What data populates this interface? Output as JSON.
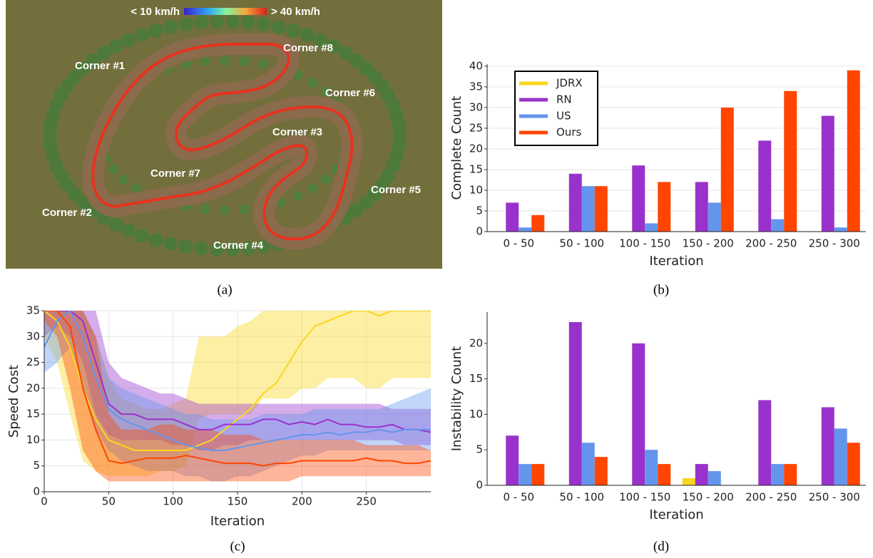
{
  "image_a": {
    "caption": "(a)",
    "speed_low": "< 10 km/h",
    "speed_high": "> 40 km/h",
    "corner_labels": [
      "Corner #1",
      "Corner #8",
      "Corner #6",
      "Corner #3",
      "Corner #7",
      "Corner #5",
      "Corner #2",
      "Corner #4"
    ]
  },
  "chart_data": [
    {
      "type": "bar",
      "caption": "(b)",
      "x_label": "Iteration",
      "y_label": "Complete Count",
      "categories": [
        "0 - 50",
        "50 - 100",
        "100 - 150",
        "150 - 200",
        "200 - 250",
        "250 - 300"
      ],
      "series": [
        {
          "name": "JDRX",
          "color": "#f9d71c",
          "values": [
            0,
            0,
            0,
            0,
            0,
            0
          ]
        },
        {
          "name": "RN",
          "color": "#9932cc",
          "values": [
            7,
            14,
            16,
            12,
            22,
            28
          ]
        },
        {
          "name": "US",
          "color": "#6495ed",
          "values": [
            1,
            11,
            2,
            7,
            3,
            1
          ]
        },
        {
          "name": "Ours",
          "color": "#ff4500",
          "values": [
            4,
            11,
            12,
            30,
            34,
            39
          ]
        }
      ],
      "ylim": [
        0,
        40.5
      ],
      "yticks": [
        0,
        5,
        10,
        15,
        20,
        25,
        30,
        35,
        40
      ],
      "grid": true,
      "legend": "upper left"
    },
    {
      "type": "line",
      "caption": "(c)",
      "x_label": "Iteration",
      "y_label": "Speed Cost",
      "x": [
        0,
        10,
        20,
        30,
        40,
        50,
        60,
        70,
        80,
        90,
        100,
        110,
        120,
        130,
        140,
        150,
        160,
        170,
        180,
        190,
        200,
        210,
        220,
        230,
        240,
        250,
        260,
        270,
        280,
        290,
        300
      ],
      "series": [
        {
          "name": "JDRX",
          "color": "#f9d71c",
          "values": [
            35,
            33,
            28,
            20,
            14,
            10,
            9,
            8,
            8,
            8,
            8,
            8,
            9,
            10,
            12,
            14,
            16,
            19,
            21,
            25,
            29,
            32,
            33,
            34,
            35,
            35,
            34,
            35,
            35,
            35,
            35
          ],
          "lower": [
            30,
            25,
            15,
            6,
            4,
            3,
            3,
            3,
            3,
            4,
            4,
            5,
            14,
            15,
            15,
            15,
            15,
            18,
            18,
            18,
            20,
            20,
            22,
            22,
            22,
            20,
            20,
            22,
            22,
            22,
            22
          ],
          "upper": [
            35,
            35,
            35,
            35,
            30,
            22,
            18,
            17,
            16,
            16,
            17,
            18,
            30,
            30,
            30,
            32,
            33,
            35,
            35,
            35,
            35,
            35,
            35,
            35,
            35,
            35,
            35,
            35,
            35,
            35,
            35
          ]
        },
        {
          "name": "RN",
          "color": "#9932cc",
          "values": [
            35,
            35,
            35,
            33,
            25,
            17,
            15,
            15,
            14,
            14,
            14,
            13,
            12,
            12,
            13,
            13,
            13,
            14,
            14,
            13,
            13.5,
            13,
            14,
            13,
            13,
            12.5,
            12.5,
            13,
            12,
            12,
            11.5
          ],
          "lower": [
            30,
            32,
            30,
            25,
            15,
            11,
            10,
            10,
            10,
            10,
            9,
            9,
            8,
            8,
            9,
            9,
            10,
            10,
            10,
            10,
            10,
            10,
            10,
            10,
            10,
            10,
            10,
            10,
            9,
            9,
            9
          ],
          "upper": [
            35,
            35,
            35,
            35,
            35,
            25,
            22,
            21,
            20,
            19,
            19,
            18,
            17,
            17,
            17,
            17,
            17,
            17,
            17,
            17,
            17,
            17,
            17,
            17,
            17,
            17,
            17,
            16,
            16,
            16,
            16
          ]
        },
        {
          "name": "US",
          "color": "#6495ed",
          "values": [
            28,
            33,
            35,
            30,
            22,
            16,
            14,
            13,
            12,
            11,
            10,
            9,
            8.5,
            8,
            8,
            8.5,
            9,
            9.5,
            10,
            10.5,
            11,
            11,
            11.5,
            11,
            11.5,
            11.5,
            12,
            11.5,
            12,
            12,
            12
          ],
          "lower": [
            23,
            25,
            28,
            20,
            12,
            8,
            6,
            5,
            4,
            4,
            4,
            3,
            3,
            2,
            2,
            3,
            3,
            4,
            5,
            6,
            7,
            7,
            8,
            8,
            8,
            8,
            8,
            8,
            8,
            8,
            8
          ],
          "upper": [
            35,
            35,
            35,
            35,
            30,
            22,
            20,
            19,
            18,
            17,
            16,
            15,
            15,
            14,
            14,
            14,
            14,
            15,
            15,
            15,
            15,
            16,
            16,
            16,
            16,
            16,
            16,
            17,
            18,
            19,
            20
          ]
        },
        {
          "name": "Ours",
          "color": "#ff4500",
          "values": [
            35,
            35,
            32,
            20,
            12,
            6,
            5.5,
            6,
            6.5,
            6.5,
            6.5,
            7,
            6.5,
            6,
            5.5,
            5.5,
            5.5,
            5,
            5.5,
            5.5,
            6,
            6,
            6,
            6,
            6,
            6.5,
            6,
            6,
            5.5,
            5.5,
            6
          ],
          "lower": [
            33,
            30,
            20,
            8,
            4,
            2,
            2,
            2,
            2,
            2,
            2,
            2,
            2,
            2,
            2,
            2,
            2,
            2,
            2,
            2,
            3,
            3,
            3,
            3,
            3,
            3,
            3,
            3,
            3,
            3,
            3
          ],
          "upper": [
            35,
            35,
            35,
            35,
            30,
            15,
            12,
            12,
            12,
            13,
            13,
            12,
            12,
            12,
            11,
            11,
            11,
            10,
            10,
            10,
            10,
            10,
            10,
            10,
            10,
            9,
            9,
            9,
            9,
            9,
            8
          ]
        }
      ],
      "xlim": [
        0,
        300
      ],
      "xticks": [
        0,
        50,
        100,
        150,
        200,
        250
      ],
      "ylim": [
        0,
        35
      ],
      "yticks": [
        0,
        5,
        10,
        15,
        20,
        25,
        30,
        35
      ],
      "grid": true
    },
    {
      "type": "bar",
      "caption": "(d)",
      "x_label": "Iteration",
      "y_label": "Instability Count",
      "categories": [
        "0 - 50",
        "50 - 100",
        "100 - 150",
        "150 - 200",
        "200 - 250",
        "250 - 300"
      ],
      "series": [
        {
          "name": "JDRX",
          "color": "#f9d71c",
          "values": [
            0,
            0,
            0,
            1,
            0,
            0
          ]
        },
        {
          "name": "RN",
          "color": "#9932cc",
          "values": [
            7,
            23,
            20,
            3,
            12,
            11
          ]
        },
        {
          "name": "US",
          "color": "#6495ed",
          "values": [
            3,
            6,
            5,
            2,
            3,
            8
          ]
        },
        {
          "name": "Ours",
          "color": "#ff4500",
          "values": [
            3,
            4,
            3,
            0,
            3,
            6
          ]
        }
      ],
      "ylim": [
        0,
        24.4
      ],
      "yticks": [
        0,
        5,
        10,
        15,
        20
      ],
      "grid": false
    }
  ]
}
